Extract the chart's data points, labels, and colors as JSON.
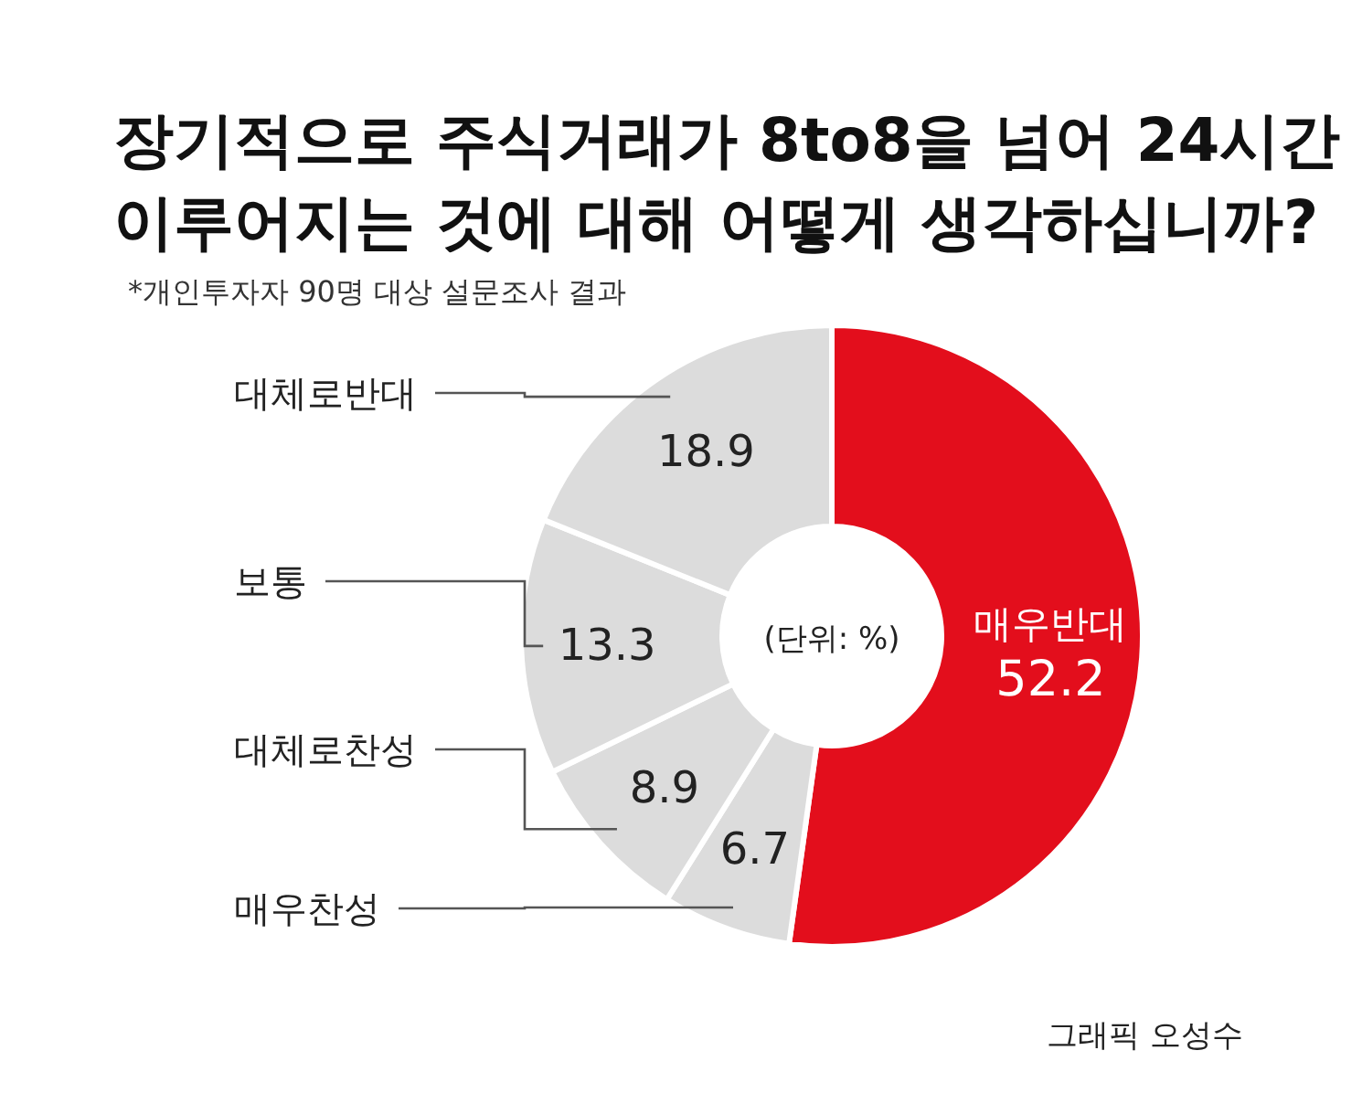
{
  "chart_data": {
    "type": "donut",
    "title": "장기적으로 주식거래가 8to8을 넘어 24시간\n이루어지는 것에 대해 어떻게 생각하십니까?",
    "subtitle": "*개인투자자 90명 대상 설문조사 결과",
    "categories": [
      "매우반대",
      "매우찬성",
      "대체로찬성",
      "보통",
      "대체로반대"
    ],
    "values": [
      52.2,
      6.7,
      8.9,
      13.3,
      18.9
    ],
    "colors": [
      "#e30e1c",
      "#dcdcdc",
      "#dcdcdc",
      "#dcdcdc",
      "#dcdcdc"
    ],
    "data_labels": true,
    "annotations": [
      "(단위: %)",
      "그래픽 오성수"
    ]
  }
}
